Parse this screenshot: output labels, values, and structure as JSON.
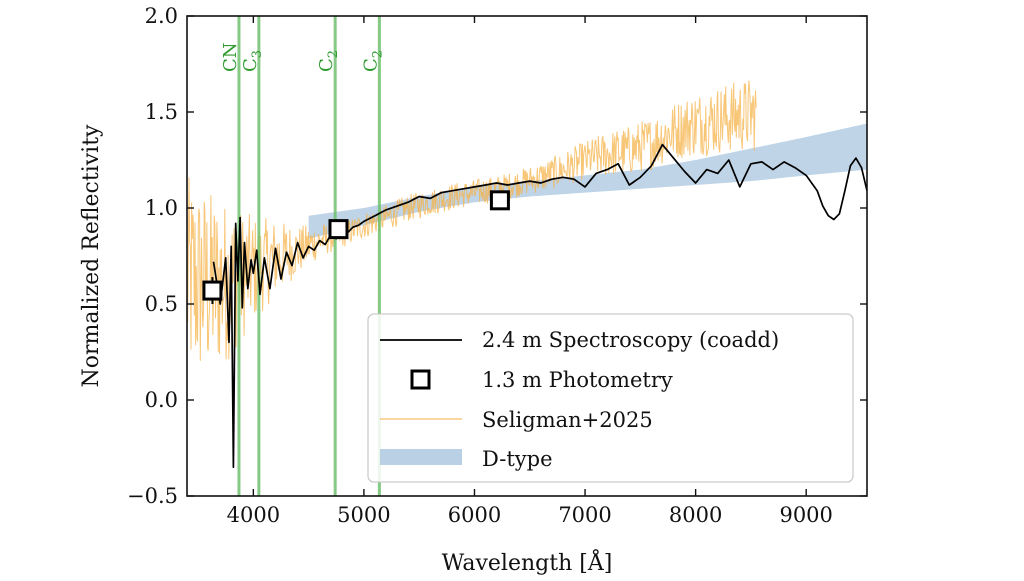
{
  "chart_data": {
    "type": "line",
    "title": "",
    "xlabel": "Wavelength [Å]",
    "ylabel": "Normalized Reflectivity",
    "xlim": [
      3400,
      9550
    ],
    "ylim": [
      -0.5,
      2.0
    ],
    "x_ticks": [
      4000,
      5000,
      6000,
      7000,
      8000,
      9000
    ],
    "x_tick_labels": [
      "4000",
      "5000",
      "6000",
      "7000",
      "8000",
      "9000"
    ],
    "y_ticks": [
      -0.5,
      0.0,
      0.5,
      1.0,
      1.5,
      2.0
    ],
    "y_tick_labels": [
      "−0.5",
      "0.0",
      "0.5",
      "1.0",
      "1.5",
      "2.0"
    ],
    "colors": {
      "spectroscopy": "#000000",
      "seligman": "#f5b34a",
      "dtype": "#a9c6df",
      "bands": "#6fbf6f",
      "band_text": "#2f9a2f"
    },
    "band_lines": [
      {
        "x": 3870,
        "label": "CN"
      },
      {
        "x": 4050,
        "label": "C3"
      },
      {
        "x": 4740,
        "label": "C2"
      },
      {
        "x": 5140,
        "label": "C2"
      }
    ],
    "band_labels_render": {
      "C3": {
        "base": "C",
        "sub": "3"
      },
      "C2": {
        "base": "C",
        "sub": "2"
      }
    },
    "dtype_band": {
      "x": [
        4500,
        5000,
        5500,
        6000,
        6500,
        7000,
        7500,
        8000,
        8500,
        9000,
        9550
      ],
      "lower": [
        0.84,
        0.91,
        0.98,
        1.03,
        1.06,
        1.08,
        1.1,
        1.12,
        1.14,
        1.17,
        1.2
      ],
      "upper": [
        0.96,
        1.0,
        1.06,
        1.11,
        1.14,
        1.17,
        1.2,
        1.25,
        1.31,
        1.37,
        1.44
      ]
    },
    "spectroscopy_coadd": {
      "x": [
        3640,
        3700,
        3750,
        3780,
        3800,
        3820,
        3840,
        3860,
        3880,
        3900,
        3920,
        3950,
        3980,
        4000,
        4030,
        4060,
        4100,
        4150,
        4200,
        4250,
        4300,
        4350,
        4400,
        4450,
        4500,
        4550,
        4600,
        4650,
        4700,
        4750,
        4800,
        4850,
        4900,
        4950,
        5000,
        5100,
        5200,
        5300,
        5400,
        5500,
        5600,
        5700,
        5800,
        5900,
        6000,
        6100,
        6200,
        6300,
        6400,
        6500,
        6600,
        6700,
        6800,
        6900,
        7000,
        7100,
        7200,
        7300,
        7400,
        7500,
        7600,
        7700,
        7800,
        7900,
        8000,
        8100,
        8200,
        8300,
        8400,
        8500,
        8600,
        8700,
        8800,
        8900,
        9000,
        9100,
        9150,
        9200,
        9250,
        9300,
        9350,
        9400,
        9450,
        9500,
        9550
      ],
      "y": [
        0.72,
        0.5,
        0.74,
        0.3,
        0.8,
        -0.35,
        0.92,
        0.62,
        0.95,
        0.48,
        0.82,
        0.58,
        0.73,
        0.66,
        0.78,
        0.55,
        0.74,
        0.58,
        0.79,
        0.63,
        0.77,
        0.7,
        0.82,
        0.74,
        0.8,
        0.78,
        0.83,
        0.81,
        0.86,
        0.84,
        0.88,
        0.87,
        0.9,
        0.91,
        0.93,
        0.96,
        0.99,
        1.01,
        1.03,
        1.06,
        1.05,
        1.08,
        1.09,
        1.1,
        1.11,
        1.12,
        1.13,
        1.12,
        1.13,
        1.14,
        1.13,
        1.15,
        1.16,
        1.15,
        1.11,
        1.18,
        1.2,
        1.23,
        1.12,
        1.16,
        1.22,
        1.33,
        1.26,
        1.19,
        1.13,
        1.2,
        1.18,
        1.25,
        1.11,
        1.23,
        1.24,
        1.2,
        1.24,
        1.21,
        1.17,
        1.09,
        1.01,
        0.96,
        0.94,
        0.97,
        1.09,
        1.22,
        1.26,
        1.21,
        1.09
      ]
    },
    "photometry": {
      "x": [
        3630,
        4770,
        6230
      ],
      "y": [
        0.57,
        0.89,
        1.04
      ],
      "yerr": [
        0.07,
        0.03,
        0.02
      ]
    },
    "seligman_2025": {
      "x": [
        3400,
        3600,
        3800,
        4000,
        4200,
        4400,
        4600,
        4800,
        5000,
        5200,
        5400,
        5600,
        5800,
        6000,
        6200,
        6400,
        6600,
        6800,
        7000,
        7200,
        7400,
        7600,
        7800,
        8000,
        8200,
        8400,
        8550
      ],
      "y": [
        0.62,
        0.6,
        0.62,
        0.68,
        0.74,
        0.78,
        0.83,
        0.86,
        0.91,
        0.95,
        1.0,
        1.03,
        1.06,
        1.08,
        1.1,
        1.13,
        1.16,
        1.2,
        1.25,
        1.28,
        1.3,
        1.34,
        1.4,
        1.44,
        1.46,
        1.48,
        1.49
      ],
      "noise": [
        0.55,
        0.5,
        0.4,
        0.28,
        0.2,
        0.13,
        0.09,
        0.07,
        0.07,
        0.07,
        0.07,
        0.07,
        0.07,
        0.07,
        0.07,
        0.07,
        0.08,
        0.09,
        0.1,
        0.12,
        0.13,
        0.14,
        0.15,
        0.17,
        0.18,
        0.19,
        0.2
      ]
    },
    "legend": {
      "position": "bottom-right",
      "entries": [
        {
          "label": "2.4 m Spectroscopy (coadd)",
          "marker": "line",
          "color": "#000000"
        },
        {
          "label": "1.3 m Photometry",
          "marker": "square",
          "color": "#000000"
        },
        {
          "label": "Seligman+2025",
          "marker": "line",
          "color": "#f5b34a"
        },
        {
          "label": "D-type",
          "marker": "patch",
          "color": "#a9c6df"
        }
      ]
    }
  }
}
